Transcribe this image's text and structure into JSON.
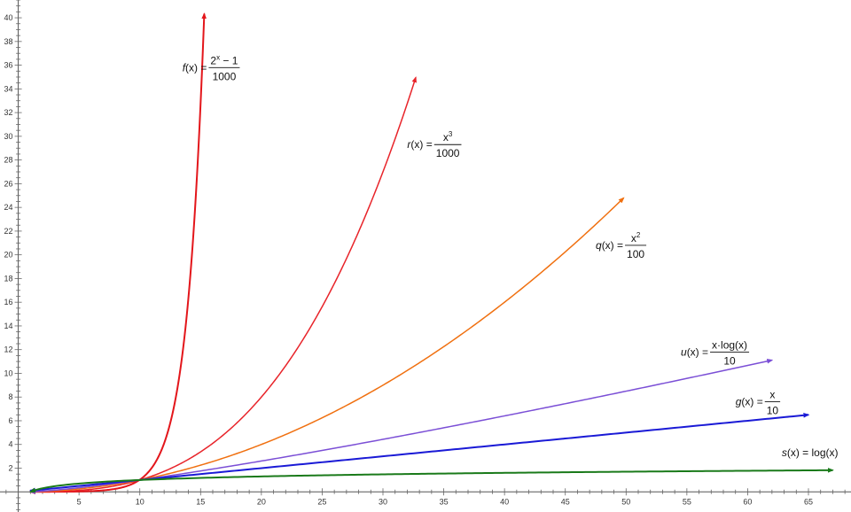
{
  "chart_data": {
    "type": "line",
    "title": "",
    "xlabel": "",
    "ylabel": "",
    "xlim": [
      -1.5,
      68.5
    ],
    "ylim": [
      -1.7,
      41.5
    ],
    "x_ticks": [
      5,
      10,
      15,
      20,
      25,
      30,
      35,
      40,
      45,
      50,
      55,
      60,
      65
    ],
    "y_ticks": [
      2,
      4,
      6,
      8,
      10,
      12,
      14,
      16,
      18,
      20,
      22,
      24,
      26,
      28,
      30,
      32,
      34,
      36,
      38,
      40
    ],
    "grid": false,
    "legend": "none",
    "series": [
      {
        "id": "f",
        "fn": "exp2",
        "color": "#e3161b",
        "width": 2,
        "xmin": 1,
        "xmax": 15.3,
        "label": {
          "name": "f",
          "arg": "(x)",
          "eq": " = ",
          "num": "2",
          "num_sup": "x",
          "num_tail": " − 1",
          "den": "1000"
        },
        "values": [
          [
            1,
            0.001
          ],
          [
            5,
            0.031
          ],
          [
            8,
            0.255
          ],
          [
            10,
            1.023
          ],
          [
            12,
            4.095
          ],
          [
            13,
            8.191
          ],
          [
            14,
            16.383
          ],
          [
            15,
            32.767
          ],
          [
            15.3,
            40.3
          ]
        ]
      },
      {
        "id": "r",
        "fn": "cube",
        "color": "#e8242a",
        "width": 1.5,
        "xmin": 1,
        "xmax": 32.7,
        "label": {
          "name": "r",
          "arg": "(x)",
          "eq": " = ",
          "num": "x",
          "num_sup": "3",
          "num_tail": "",
          "den": "1000"
        },
        "values": [
          [
            1,
            0.001
          ],
          [
            5,
            0.125
          ],
          [
            10,
            1
          ],
          [
            15,
            3.375
          ],
          [
            20,
            8
          ],
          [
            25,
            15.625
          ],
          [
            30,
            27
          ],
          [
            32.7,
            35
          ]
        ]
      },
      {
        "id": "q",
        "fn": "square",
        "color": "#f07010",
        "width": 1.5,
        "xmin": 1,
        "xmax": 49.8,
        "label": {
          "name": "q",
          "arg": "(x)",
          "eq": " = ",
          "num": "x",
          "num_sup": "2",
          "num_tail": "",
          "den": "100"
        },
        "values": [
          [
            1,
            0.01
          ],
          [
            10,
            1
          ],
          [
            20,
            4
          ],
          [
            30,
            9
          ],
          [
            40,
            16
          ],
          [
            49.8,
            24.8
          ]
        ]
      },
      {
        "id": "u",
        "fn": "xlog",
        "color": "#7b4fd6",
        "width": 1.5,
        "xmin": 1,
        "xmax": 62,
        "label": {
          "name": "u",
          "arg": "(x)",
          "eq": " = ",
          "num": "x·log(x)",
          "num_sup": "",
          "num_tail": "",
          "den": "10"
        },
        "values": [
          [
            1,
            0
          ],
          [
            10,
            1
          ],
          [
            20,
            2.6
          ],
          [
            30,
            4.43
          ],
          [
            40,
            6.41
          ],
          [
            50,
            8.49
          ],
          [
            62,
            11.1
          ]
        ]
      },
      {
        "id": "g",
        "fn": "linear",
        "color": "#1a1ad6",
        "width": 2,
        "xmin": 1,
        "xmax": 65,
        "label": {
          "name": "g",
          "arg": "(x)",
          "eq": " = ",
          "num": "x",
          "num_sup": "",
          "num_tail": "",
          "den": "10"
        },
        "values": [
          [
            1,
            0.1
          ],
          [
            10,
            1
          ],
          [
            30,
            3
          ],
          [
            50,
            5
          ],
          [
            65,
            6.5
          ]
        ]
      },
      {
        "id": "s",
        "fn": "log",
        "color": "#1a7a1a",
        "width": 2,
        "xmin": 1,
        "xmax": 67,
        "label": {
          "name": "s",
          "arg": "(x)",
          "eq": " = log(x)",
          "num": "",
          "num_sup": "",
          "num_tail": "",
          "den": ""
        },
        "values": [
          [
            1,
            0
          ],
          [
            10,
            1
          ],
          [
            30,
            1.48
          ],
          [
            50,
            1.7
          ],
          [
            67,
            1.83
          ]
        ]
      }
    ]
  }
}
